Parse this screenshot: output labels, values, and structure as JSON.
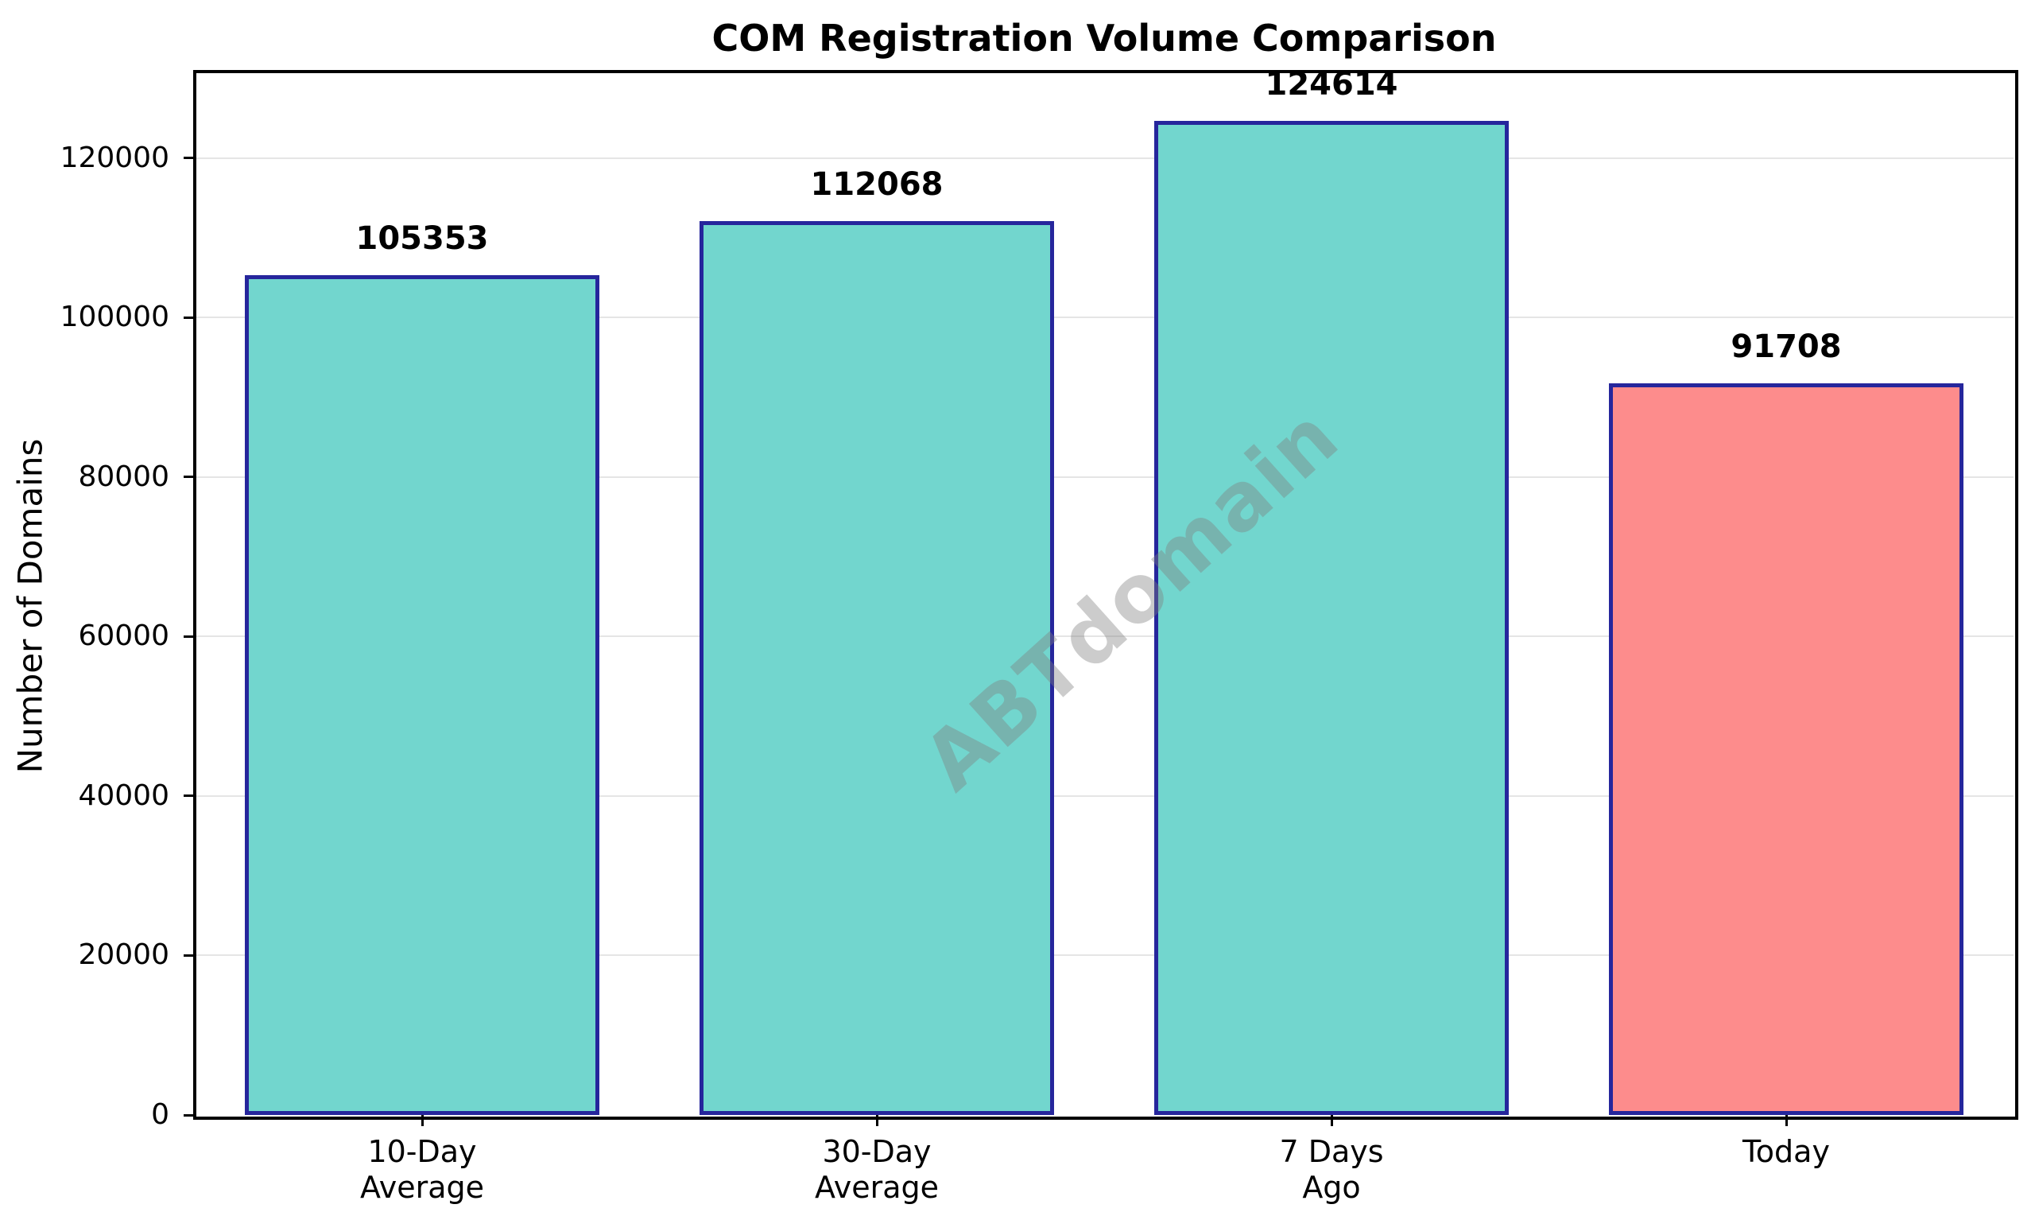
{
  "watermark": "ABTdomain",
  "chart_data": {
    "type": "bar",
    "title": "COM Registration Volume Comparison",
    "ylabel": "Number of Domains",
    "xlabel": "",
    "categories": [
      "10-Day Average",
      "30-Day Average",
      "7 Days Ago",
      "Today"
    ],
    "category_lines": [
      [
        "10-Day",
        "Average"
      ],
      [
        "30-Day",
        "Average"
      ],
      [
        "7 Days",
        "Ago"
      ],
      [
        "Today"
      ]
    ],
    "values": [
      105353,
      112068,
      124614,
      91708
    ],
    "value_labels": [
      "105353",
      "112068",
      "124614",
      "91708"
    ],
    "yticks": [
      0,
      20000,
      40000,
      60000,
      80000,
      100000,
      120000
    ],
    "ylim": [
      0,
      130845
    ],
    "grid": true,
    "legend_position": "none",
    "bar_colors": [
      "#72d6ce",
      "#72d6ce",
      "#72d6ce",
      "#fd8c8c"
    ],
    "colors": {
      "bar_fill_average": "#72d6ce",
      "bar_fill_today": "#fd8c8c",
      "bar_edge": "#26269c",
      "grid": "#e5e5e5",
      "watermark_gray": "#808080",
      "text": "#000000",
      "background": "#ffffff"
    }
  }
}
